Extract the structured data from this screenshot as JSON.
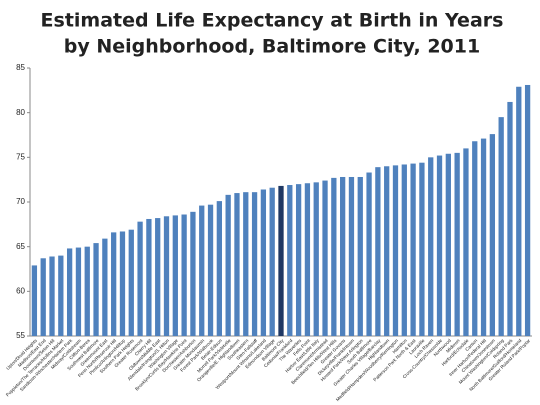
{
  "chart_data": {
    "type": "bar",
    "title": [
      "Estimated Life Expectancy at Birth in Years",
      "by Neighborhood, Baltimore City, 2011"
    ],
    "categories": [
      "Upton/Druid Heights",
      "Madison/East End",
      "Downtown/Seton Hill",
      "Poppleton/The Terraces/Hollins Market",
      "Sandtown-Winchester/Harlem Park",
      "Midway/Coldstream",
      "Clifton-Berea",
      "Southwest Baltimore",
      "Greenmount East",
      "Penn North/Reservoir Hill",
      "Pimlico/Arlington/Hilltop",
      "Southern Park Heights",
      "Greater Rosemont",
      "Cherry Hill",
      "Oldtown/Middle East",
      "Allendale/Irvington/S. Hilton",
      "Washington Village",
      "Brooklyn/Curtis Bay/Hawkins Point",
      "Dorchester/Ashburton",
      "Greater Mondawmin",
      "Forest Park/Walbrook",
      "Belair-Edison",
      "Morrell Park/Violetville",
      "Orangeville/E. Highlandtown",
      "Southeastern",
      "Glen-Fallstaff",
      "Westport/Mount Winans/Lakeland",
      "Edmondson Village",
      "Baltimore City",
      "Cedonia/Frankford",
      "The Waverlies",
      "Fells Point",
      "Harbor East/Little Italy",
      "Claremont/Armistead",
      "Beechfield/Ten Hills/West Hills",
      "Greater Govans",
      "Dickeyville/Franklintown",
      "Howard Park/West Arlington",
      "South Baltimore",
      "Greater Charles Village/Barclay",
      "Highlandtown",
      "Medfield/Hampden/Woodberry/Remington",
      "Hamilton",
      "Patterson Park North & East",
      "Lauraville",
      "Loch Raven",
      "Cross-Country/Cheswolde",
      "Northwood",
      "Midtown",
      "Harford/Echodale",
      "Canton",
      "Inner Harbor/Federal Hill",
      "Chinatown/Jonestown",
      "Mount Washington/Coldspring",
      "Roland Park",
      "North Baltimore/Guilford/Homeland",
      "Greater Roland Park/Poplar"
    ],
    "values": [
      62.9,
      63.7,
      63.9,
      64.0,
      64.8,
      64.9,
      65.0,
      65.4,
      65.9,
      66.6,
      66.7,
      66.9,
      67.8,
      68.1,
      68.2,
      68.4,
      68.5,
      68.6,
      68.9,
      69.6,
      69.7,
      70.1,
      70.8,
      71.0,
      71.1,
      71.1,
      71.4,
      71.6,
      71.8,
      71.9,
      72.0,
      72.1,
      72.2,
      72.4,
      72.7,
      72.8,
      72.8,
      72.8,
      73.3,
      73.9,
      74.0,
      74.1,
      74.2,
      74.3,
      74.4,
      75.0,
      75.2,
      75.4,
      75.5,
      76.0,
      76.8,
      77.1,
      77.6,
      79.5,
      81.2,
      82.9,
      83.1
    ],
    "colors": [
      "#4f81bd",
      "#4f81bd",
      "#4f81bd",
      "#4f81bd",
      "#4f81bd",
      "#4f81bd",
      "#4f81bd",
      "#4f81bd",
      "#4f81bd",
      "#4f81bd",
      "#4f81bd",
      "#4f81bd",
      "#4f81bd",
      "#4f81bd",
      "#4f81bd",
      "#4f81bd",
      "#4f81bd",
      "#4f81bd",
      "#4f81bd",
      "#4f81bd",
      "#4f81bd",
      "#4f81bd",
      "#4f81bd",
      "#4f81bd",
      "#4f81bd",
      "#4f81bd",
      "#4f81bd",
      "#4f81bd",
      "#1f3864",
      "#4f81bd",
      "#4f81bd",
      "#4f81bd",
      "#4f81bd",
      "#4f81bd",
      "#4f81bd",
      "#4f81bd",
      "#4f81bd",
      "#4f81bd",
      "#4f81bd",
      "#4f81bd",
      "#4f81bd",
      "#4f81bd",
      "#4f81bd",
      "#4f81bd",
      "#4f81bd",
      "#4f81bd",
      "#4f81bd",
      "#4f81bd",
      "#4f81bd",
      "#4f81bd",
      "#4f81bd",
      "#4f81bd",
      "#4f81bd",
      "#4f81bd",
      "#4f81bd",
      "#4f81bd",
      "#4f81bd"
    ],
    "ylim": [
      55,
      85
    ],
    "yticks": [
      55,
      60,
      65,
      70,
      75,
      80,
      85
    ],
    "grid": false
  }
}
